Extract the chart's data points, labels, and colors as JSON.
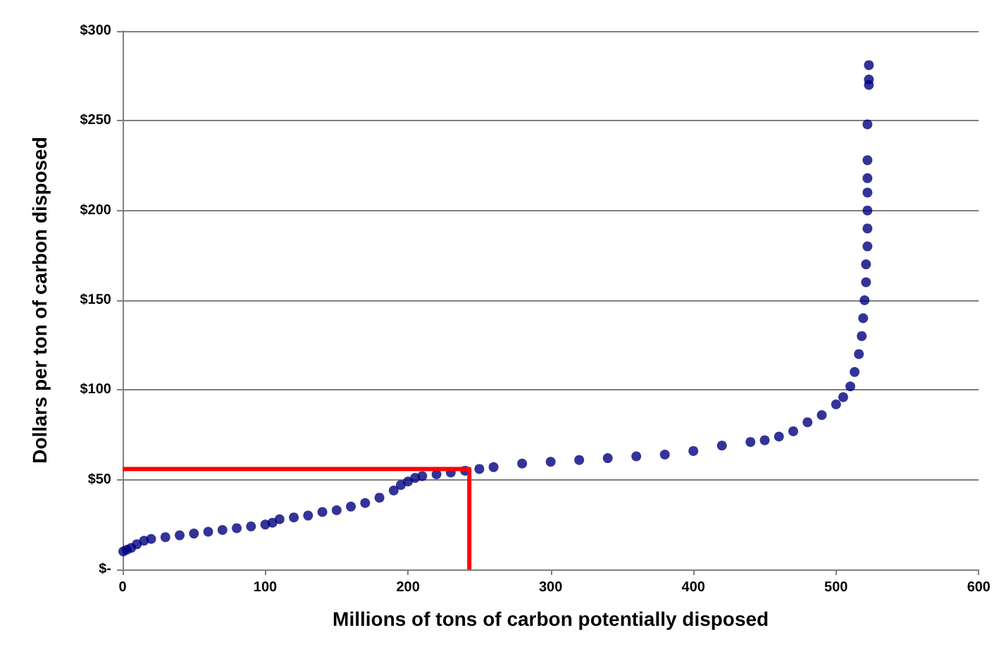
{
  "chart_data": {
    "type": "scatter",
    "xlabel": "Millions of tons of carbon potentially disposed",
    "ylabel": "Dollars per ton of carbon disposed",
    "xlim": [
      0,
      600
    ],
    "xticks": [
      0,
      100,
      200,
      300,
      400,
      500,
      600
    ],
    "ylim": [
      0,
      300
    ],
    "yticks": [
      {
        "value": 0,
        "label": "$-"
      },
      {
        "value": 50,
        "label": "$50"
      },
      {
        "value": 100,
        "label": "$100"
      },
      {
        "value": 150,
        "label": "$150"
      },
      {
        "value": 200,
        "label": "$200"
      },
      {
        "value": 250,
        "label": "$250"
      },
      {
        "value": 300,
        "label": "$300"
      }
    ],
    "grid": "y",
    "marker": "circle",
    "series": [
      {
        "color": "#00007f",
        "x": [
          0.5,
          3,
          6,
          10,
          15,
          20,
          30,
          40,
          50,
          60,
          70,
          80,
          90,
          100,
          105,
          110,
          120,
          130,
          140,
          150,
          160,
          170,
          180,
          190,
          195,
          200,
          205,
          210,
          220,
          230,
          240,
          250,
          260,
          280,
          300,
          320,
          340,
          360,
          380,
          400,
          420,
          440,
          450,
          460,
          470,
          480,
          490,
          500,
          505,
          510,
          513,
          516,
          518,
          519,
          520,
          521,
          521,
          522,
          522,
          522,
          522,
          522,
          522,
          522,
          523,
          523,
          523
        ],
        "values": [
          10,
          11,
          12,
          14,
          16,
          17,
          18,
          19,
          20,
          21,
          22,
          23,
          24,
          25,
          26,
          28,
          29,
          30,
          32,
          33,
          35,
          37,
          40,
          44,
          47,
          49,
          51,
          52,
          53,
          54,
          55,
          56,
          57,
          59,
          60,
          61,
          62,
          63,
          64,
          66,
          69,
          71,
          72,
          74,
          77,
          82,
          86,
          92,
          96,
          102,
          110,
          120,
          130,
          140,
          150,
          160,
          170,
          180,
          190,
          200,
          210,
          218,
          228,
          248,
          270,
          273,
          281
        ]
      },
      {
        "type": "line",
        "color": "#ff0000",
        "marker": "none",
        "line_style": "solid",
        "x": [
          0,
          243,
          243
        ],
        "values": [
          56,
          56,
          0
        ]
      }
    ]
  }
}
